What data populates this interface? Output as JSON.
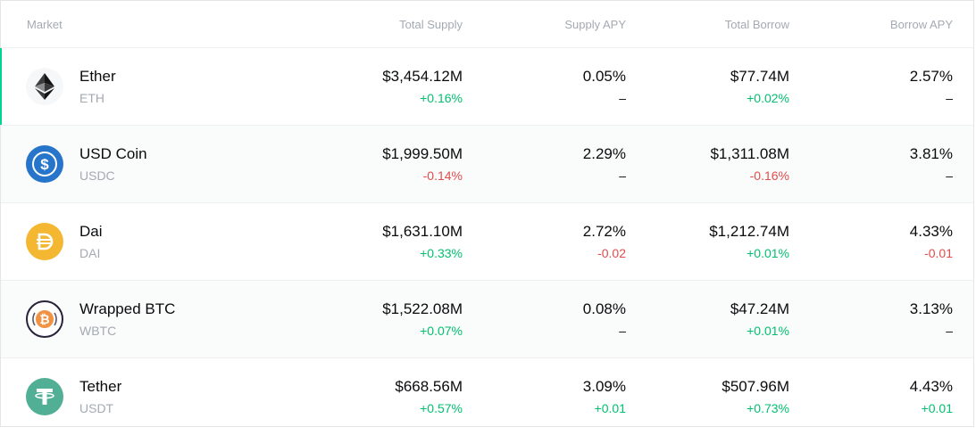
{
  "header": {
    "market": "Market",
    "total_supply": "Total Supply",
    "supply_apy": "Supply APY",
    "total_borrow": "Total Borrow",
    "borrow_apy": "Borrow APY"
  },
  "colors": {
    "positive": "#00c16e",
    "negative": "#e24c4c",
    "active_indicator": "#00d395",
    "usdc": "#2775ca",
    "dai": "#f4b731",
    "wbtc_orange": "#f09242",
    "usdt": "#50af95"
  },
  "rows": [
    {
      "name": "Ether",
      "symbol": "ETH",
      "icon": "ether-icon",
      "total_supply": "$3,454.12M",
      "total_supply_change": "+0.16%",
      "supply_apy": "0.05%",
      "supply_apy_change": "–",
      "total_borrow": "$77.74M",
      "total_borrow_change": "+0.02%",
      "borrow_apy": "2.57%",
      "borrow_apy_change": "–"
    },
    {
      "name": "USD Coin",
      "symbol": "USDC",
      "icon": "usdc-icon",
      "total_supply": "$1,999.50M",
      "total_supply_change": "-0.14%",
      "supply_apy": "2.29%",
      "supply_apy_change": "–",
      "total_borrow": "$1,311.08M",
      "total_borrow_change": "-0.16%",
      "borrow_apy": "3.81%",
      "borrow_apy_change": "–"
    },
    {
      "name": "Dai",
      "symbol": "DAI",
      "icon": "dai-icon",
      "total_supply": "$1,631.10M",
      "total_supply_change": "+0.33%",
      "supply_apy": "2.72%",
      "supply_apy_change": "-0.02",
      "total_borrow": "$1,212.74M",
      "total_borrow_change": "+0.01%",
      "borrow_apy": "4.33%",
      "borrow_apy_change": "-0.01"
    },
    {
      "name": "Wrapped BTC",
      "symbol": "WBTC",
      "icon": "wbtc-icon",
      "total_supply": "$1,522.08M",
      "total_supply_change": "+0.07%",
      "supply_apy": "0.08%",
      "supply_apy_change": "–",
      "total_borrow": "$47.24M",
      "total_borrow_change": "+0.01%",
      "borrow_apy": "3.13%",
      "borrow_apy_change": "–"
    },
    {
      "name": "Tether",
      "symbol": "USDT",
      "icon": "tether-icon",
      "total_supply": "$668.56M",
      "total_supply_change": "+0.57%",
      "supply_apy": "3.09%",
      "supply_apy_change": "+0.01",
      "total_borrow": "$507.96M",
      "total_borrow_change": "+0.73%",
      "borrow_apy": "4.43%",
      "borrow_apy_change": "+0.01"
    }
  ]
}
